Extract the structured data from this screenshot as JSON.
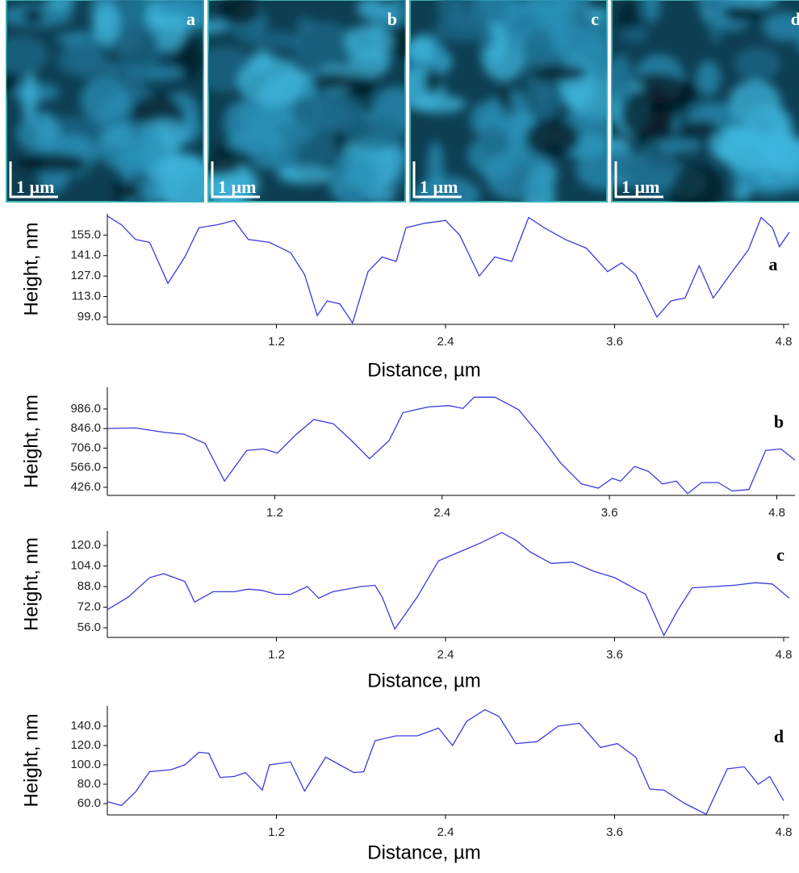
{
  "images": [
    {
      "label": "a",
      "scale_bar": "1 µm"
    },
    {
      "label": "b",
      "scale_bar": "1 µm"
    },
    {
      "label": "c",
      "scale_bar": "1 µm"
    },
    {
      "label": "d",
      "scale_bar": "1 µm"
    }
  ],
  "chart_data": [
    {
      "type": "line",
      "panel_label": "a",
      "y_label": "Height, nm",
      "x_label": "Distance, µm",
      "color": "#3a3ae0",
      "xlim": [
        0,
        4.84
      ],
      "ylim": [
        94,
        169.5
      ],
      "xticks": [
        1.2,
        2.4,
        3.6,
        4.8
      ],
      "yticks": [
        {
          "value": 99,
          "label": "99.0"
        },
        {
          "value": 113,
          "label": "113.0"
        },
        {
          "value": 127,
          "label": "127.0"
        },
        {
          "value": 141,
          "label": "141.0"
        },
        {
          "value": 155,
          "label": "155.0"
        }
      ],
      "x": [
        0,
        0.1,
        0.2,
        0.3,
        0.43,
        0.55,
        0.65,
        0.78,
        0.9,
        1.0,
        1.15,
        1.3,
        1.4,
        1.49,
        1.56,
        1.65,
        1.74,
        1.85,
        1.95,
        2.05,
        2.12,
        2.25,
        2.4,
        2.5,
        2.64,
        2.75,
        2.87,
        2.99,
        3.1,
        3.25,
        3.4,
        3.55,
        3.65,
        3.75,
        3.9,
        4.0,
        4.1,
        4.2,
        4.3,
        4.45,
        4.55,
        4.64,
        4.72,
        4.77,
        4.84
      ],
      "values": [
        168,
        162,
        152,
        150,
        122,
        140,
        160,
        162,
        165,
        152,
        150,
        143,
        128,
        100,
        110,
        108,
        95,
        130,
        140,
        137,
        160,
        163,
        165,
        155,
        127,
        140,
        137,
        167,
        160,
        152,
        146,
        130,
        136,
        128,
        99,
        110,
        112,
        134,
        112,
        132,
        145,
        167,
        160,
        147,
        157
      ]
    },
    {
      "type": "line",
      "panel_label": "b",
      "y_label": "Height, nm",
      "color": "#3a3ae0",
      "xlim": [
        0,
        4.93
      ],
      "ylim": [
        368,
        1141
      ],
      "xticks": [
        1.2,
        2.4,
        3.6,
        4.8
      ],
      "yticks": [
        {
          "value": 426,
          "label": "426.0"
        },
        {
          "value": 566,
          "label": "566.0"
        },
        {
          "value": 706,
          "label": "706.0"
        },
        {
          "value": 846,
          "label": "846.0"
        },
        {
          "value": 986,
          "label": "986.0"
        }
      ],
      "x": [
        0,
        0.2,
        0.4,
        0.55,
        0.7,
        0.84,
        1.0,
        1.12,
        1.22,
        1.35,
        1.48,
        1.62,
        1.75,
        1.88,
        2.02,
        2.12,
        2.3,
        2.45,
        2.55,
        2.63,
        2.78,
        2.95,
        3.1,
        3.25,
        3.4,
        3.52,
        3.62,
        3.68,
        3.78,
        3.88,
        3.98,
        4.08,
        4.16,
        4.26,
        4.38,
        4.48,
        4.6,
        4.72,
        4.83,
        4.93
      ],
      "values": [
        846,
        850,
        820,
        805,
        740,
        470,
        690,
        700,
        670,
        800,
        910,
        880,
        760,
        630,
        760,
        960,
        1000,
        1010,
        990,
        1070,
        1070,
        980,
        800,
        600,
        450,
        420,
        490,
        470,
        575,
        540,
        450,
        470,
        380,
        460,
        460,
        400,
        410,
        690,
        700,
        620
      ]
    },
    {
      "type": "line",
      "panel_label": "c",
      "y_label": "Height, nm",
      "x_label": "Distance, µm",
      "color": "#3a3ae0",
      "xlim": [
        0,
        4.84
      ],
      "ylim": [
        48.5,
        131.3
      ],
      "xticks": [
        1.2,
        2.4,
        3.6,
        4.8
      ],
      "yticks": [
        {
          "value": 56,
          "label": "56.0"
        },
        {
          "value": 72,
          "label": "72.0"
        },
        {
          "value": 88,
          "label": "88.0"
        },
        {
          "value": 104,
          "label": "104.0"
        },
        {
          "value": 120,
          "label": "120.0"
        }
      ],
      "x": [
        0,
        0.15,
        0.3,
        0.4,
        0.55,
        0.62,
        0.75,
        0.9,
        1.0,
        1.1,
        1.2,
        1.3,
        1.42,
        1.5,
        1.6,
        1.8,
        1.9,
        1.95,
        2.04,
        2.2,
        2.35,
        2.5,
        2.65,
        2.8,
        2.9,
        3.0,
        3.15,
        3.3,
        3.45,
        3.6,
        3.75,
        3.82,
        3.95,
        4.05,
        4.15,
        4.3,
        4.45,
        4.6,
        4.72,
        4.84
      ],
      "values": [
        70,
        80,
        95,
        98,
        92,
        76,
        84,
        84,
        86,
        85,
        82,
        82,
        88,
        79,
        84,
        88,
        89,
        80,
        55,
        80,
        108,
        115,
        122,
        130,
        124,
        115,
        106,
        107,
        100,
        95,
        86,
        82,
        50,
        70,
        87,
        88,
        89,
        91,
        90,
        79
      ]
    },
    {
      "type": "line",
      "panel_label": "d",
      "y_label": "Height, nm",
      "x_label": "Distance, µm",
      "color": "#3a3ae0",
      "xlim": [
        0,
        4.84
      ],
      "ylim": [
        48.3,
        160.8
      ],
      "xticks": [
        1.2,
        2.4,
        3.6,
        4.8
      ],
      "yticks": [
        {
          "value": 60,
          "label": "60.0"
        },
        {
          "value": 80,
          "label": "80.0"
        },
        {
          "value": 100,
          "label": "100.0"
        },
        {
          "value": 120,
          "label": "120.0"
        },
        {
          "value": 140,
          "label": "140.0"
        }
      ],
      "x": [
        0,
        0.1,
        0.2,
        0.3,
        0.45,
        0.55,
        0.65,
        0.72,
        0.8,
        0.9,
        0.98,
        1.1,
        1.15,
        1.3,
        1.4,
        1.55,
        1.65,
        1.75,
        1.82,
        1.9,
        2.05,
        2.2,
        2.35,
        2.45,
        2.55,
        2.68,
        2.78,
        2.9,
        3.05,
        3.2,
        3.35,
        3.5,
        3.62,
        3.75,
        3.85,
        3.95,
        4.1,
        4.25,
        4.4,
        4.52,
        4.62,
        4.7,
        4.8
      ],
      "values": [
        62,
        58,
        72,
        93,
        95,
        100,
        113,
        112,
        87,
        88,
        92,
        74,
        100,
        103,
        73,
        108,
        100,
        92,
        93,
        125,
        130,
        130,
        138,
        120,
        145,
        157,
        150,
        122,
        124,
        140,
        143,
        118,
        122,
        108,
        75,
        74,
        60,
        49,
        96,
        98,
        80,
        88,
        63
      ]
    }
  ]
}
